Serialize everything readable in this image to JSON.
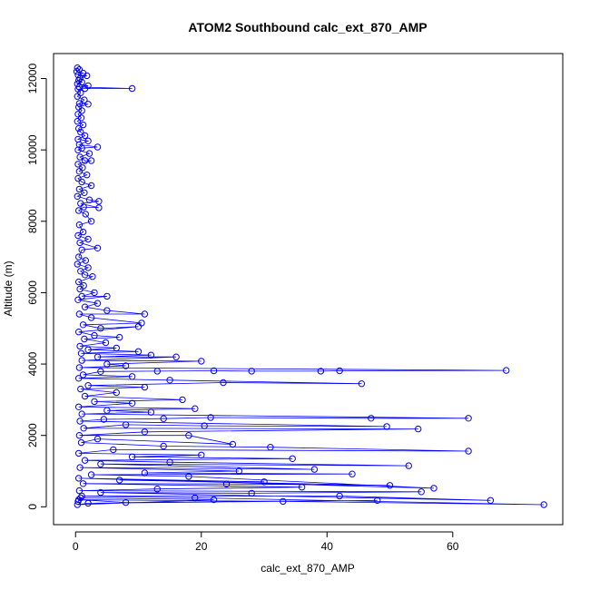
{
  "chart_data": {
    "type": "scatter",
    "title": "ATOM2 Southbound calc_ext_870_AMP",
    "xlabel": "calc_ext_870_AMP",
    "ylabel": "Altitude (m)",
    "xlim": [
      -3.5,
      77.5
    ],
    "ylim": [
      -500,
      12700
    ],
    "xticks": [
      0,
      20,
      40,
      60
    ],
    "yticks": [
      0,
      2000,
      4000,
      6000,
      8000,
      10000,
      12000
    ],
    "grid": false,
    "legend": "none",
    "style": "points connected by lines (type='b')",
    "color": "#0000ff",
    "series": [
      {
        "points": [
          [
            0.3,
            12300
          ],
          [
            0.6,
            12250
          ],
          [
            0.2,
            12200
          ],
          [
            1.2,
            12150
          ],
          [
            0.4,
            12100
          ],
          [
            1.8,
            12080
          ],
          [
            0.7,
            12000
          ],
          [
            0.5,
            11950
          ],
          [
            1.0,
            11900
          ],
          [
            0.3,
            11850
          ],
          [
            2.0,
            11800
          ],
          [
            0.6,
            11760
          ],
          [
            9.0,
            11720
          ],
          [
            1.5,
            11720
          ],
          [
            0.4,
            11700
          ],
          [
            0.8,
            11600
          ],
          [
            0.3,
            11500
          ],
          [
            1.4,
            11400
          ],
          [
            0.6,
            11300
          ],
          [
            2.0,
            11280
          ],
          [
            0.5,
            11200
          ],
          [
            1.0,
            11100
          ],
          [
            0.4,
            11000
          ],
          [
            0.9,
            10900
          ],
          [
            0.3,
            10800
          ],
          [
            1.2,
            10700
          ],
          [
            0.5,
            10600
          ],
          [
            0.8,
            10500
          ],
          [
            1.5,
            10400
          ],
          [
            0.4,
            10300
          ],
          [
            2.0,
            10250
          ],
          [
            0.6,
            10150
          ],
          [
            3.5,
            10080
          ],
          [
            1.0,
            10050
          ],
          [
            0.4,
            10000
          ],
          [
            2.2,
            9900
          ],
          [
            0.7,
            9800
          ],
          [
            1.5,
            9700
          ],
          [
            2.5,
            9700
          ],
          [
            0.4,
            9600
          ],
          [
            1.1,
            9500
          ],
          [
            0.6,
            9400
          ],
          [
            1.8,
            9300
          ],
          [
            0.4,
            9200
          ],
          [
            1.0,
            9100
          ],
          [
            2.5,
            9000
          ],
          [
            0.6,
            8900
          ],
          [
            1.4,
            8800
          ],
          [
            0.3,
            8700
          ],
          [
            2.2,
            8600
          ],
          [
            3.7,
            8560
          ],
          [
            0.8,
            8500
          ],
          [
            3.7,
            8380
          ],
          [
            1.3,
            8400
          ],
          [
            0.5,
            8300
          ],
          [
            1.6,
            8200
          ],
          [
            2.5,
            8000
          ],
          [
            0.6,
            7900
          ],
          [
            1.2,
            7700
          ],
          [
            0.4,
            7600
          ],
          [
            2.0,
            7500
          ],
          [
            0.7,
            7400
          ],
          [
            3.5,
            7250
          ],
          [
            1.0,
            7200
          ],
          [
            0.5,
            7000
          ],
          [
            1.6,
            6900
          ],
          [
            0.3,
            6800
          ],
          [
            2.0,
            6700
          ],
          [
            0.8,
            6600
          ],
          [
            1.5,
            6500
          ],
          [
            2.7,
            6450
          ],
          [
            0.5,
            6300
          ],
          [
            1.3,
            6200
          ],
          [
            0.7,
            6100
          ],
          [
            3.0,
            6000
          ],
          [
            1.0,
            5900
          ],
          [
            5.0,
            5900
          ],
          [
            0.4,
            5800
          ],
          [
            3.5,
            5700
          ],
          [
            1.5,
            5600
          ],
          [
            5.0,
            5500
          ],
          [
            11.0,
            5400
          ],
          [
            0.6,
            5400
          ],
          [
            2.5,
            5300
          ],
          [
            10.5,
            5150
          ],
          [
            1.2,
            5100
          ],
          [
            4.0,
            5000
          ],
          [
            10.0,
            5050
          ],
          [
            0.5,
            4900
          ],
          [
            3.0,
            4800
          ],
          [
            7.0,
            4750
          ],
          [
            1.4,
            4700
          ],
          [
            4.8,
            4600
          ],
          [
            0.7,
            4500
          ],
          [
            6.5,
            4450
          ],
          [
            2.0,
            4400
          ],
          [
            10.0,
            4350
          ],
          [
            0.9,
            4300
          ],
          [
            12.0,
            4250
          ],
          [
            3.5,
            4200
          ],
          [
            16.0,
            4200
          ],
          [
            1.0,
            4100
          ],
          [
            20.0,
            4080
          ],
          [
            5.0,
            4000
          ],
          [
            8.0,
            3950
          ],
          [
            0.6,
            3900
          ],
          [
            68.5,
            3820
          ],
          [
            42.0,
            3810
          ],
          [
            39.0,
            3800
          ],
          [
            28.0,
            3800
          ],
          [
            22.0,
            3810
          ],
          [
            13.0,
            3800
          ],
          [
            4.0,
            3790
          ],
          [
            1.2,
            3700
          ],
          [
            9.0,
            3650
          ],
          [
            0.5,
            3600
          ],
          [
            15.0,
            3550
          ],
          [
            45.5,
            3450
          ],
          [
            23.5,
            3480
          ],
          [
            2.0,
            3400
          ],
          [
            11.0,
            3350
          ],
          [
            0.8,
            3300
          ],
          [
            6.5,
            3200
          ],
          [
            1.5,
            3100
          ],
          [
            17.0,
            3000
          ],
          [
            3.0,
            2950
          ],
          [
            9.0,
            2900
          ],
          [
            0.5,
            2800
          ],
          [
            19.0,
            2750
          ],
          [
            5.0,
            2700
          ],
          [
            12.0,
            2650
          ],
          [
            1.0,
            2600
          ],
          [
            62.5,
            2480
          ],
          [
            47.0,
            2480
          ],
          [
            21.5,
            2500
          ],
          [
            14.0,
            2470
          ],
          [
            4.5,
            2450
          ],
          [
            0.7,
            2400
          ],
          [
            49.5,
            2250
          ],
          [
            20.5,
            2270
          ],
          [
            8.0,
            2300
          ],
          [
            1.3,
            2200
          ],
          [
            54.5,
            2180
          ],
          [
            11.0,
            2100
          ],
          [
            0.6,
            2000
          ],
          [
            18.0,
            2000
          ],
          [
            25.0,
            1750
          ],
          [
            3.5,
            1900
          ],
          [
            0.9,
            1800
          ],
          [
            14.0,
            1700
          ],
          [
            31.0,
            1670
          ],
          [
            62.5,
            1560
          ],
          [
            6.0,
            1600
          ],
          [
            0.5,
            1500
          ],
          [
            20.0,
            1450
          ],
          [
            9.0,
            1400
          ],
          [
            34.5,
            1350
          ],
          [
            1.5,
            1300
          ],
          [
            15.0,
            1250
          ],
          [
            53.0,
            1150
          ],
          [
            4.0,
            1200
          ],
          [
            38.0,
            1050
          ],
          [
            0.7,
            1100
          ],
          [
            26.0,
            1000
          ],
          [
            11.0,
            950
          ],
          [
            44.0,
            920
          ],
          [
            2.5,
            900
          ],
          [
            18.0,
            850
          ],
          [
            57.0,
            520
          ],
          [
            0.5,
            800
          ],
          [
            30.0,
            700
          ],
          [
            7.0,
            750
          ],
          [
            50.0,
            600
          ],
          [
            24.0,
            640
          ],
          [
            1.2,
            650
          ],
          [
            36.0,
            550
          ],
          [
            13.0,
            500
          ],
          [
            0.6,
            450
          ],
          [
            55.0,
            420
          ],
          [
            28.0,
            380
          ],
          [
            4.0,
            400
          ],
          [
            66.0,
            180
          ],
          [
            42.0,
            300
          ],
          [
            1.0,
            300
          ],
          [
            19.0,
            250
          ],
          [
            74.5,
            60
          ],
          [
            33.0,
            150
          ],
          [
            0.5,
            200
          ],
          [
            8.0,
            120
          ],
          [
            48.0,
            180
          ],
          [
            2.0,
            100
          ],
          [
            0.3,
            60
          ],
          [
            22.0,
            200
          ],
          [
            0.8,
            250
          ],
          [
            0.4,
            150
          ]
        ]
      }
    ]
  }
}
